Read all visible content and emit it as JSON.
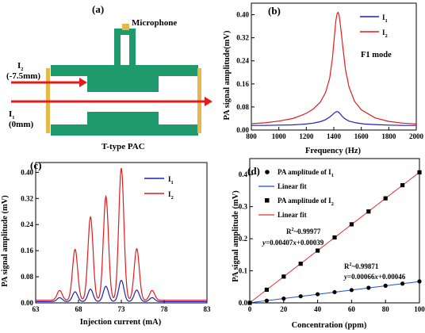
{
  "colors": {
    "i1": "#1f1fbe",
    "i2": "#e21c1c",
    "pac_green": "#1f9a6c",
    "window_gold": "#e6b84a",
    "beam_red": "#e21c1c",
    "mic_gold": "#e6b84a",
    "fit_blue": "#1a4fcf",
    "fit_red": "#e0302d"
  },
  "panels": {
    "a": {
      "panel_label": "(a)",
      "microphone_label": "Microphone",
      "beam_i2_name": "I",
      "beam_i2_sub": "2",
      "beam_i2_pos": "(-7.5mm)",
      "beam_i1_name": "I",
      "beam_i1_sub": "1",
      "beam_i1_pos": "(0mm)",
      "caption": "T-type PAC"
    },
    "b": {
      "panel_label": "(b)",
      "mode_label": "F1 mode",
      "legend_i1": "I",
      "legend_i1_sub": "1",
      "legend_i2": "I",
      "legend_i2_sub": "2"
    },
    "c": {
      "panel_label": "(c)",
      "legend_i1": "I",
      "legend_i1_sub": "1",
      "legend_i2": "I",
      "legend_i2_sub": "2"
    },
    "d": {
      "panel_label": "(d)",
      "legend_pa_i1": "PA amplitude of I",
      "legend_pa_i1_sub": "1",
      "legend_fit1": "Linear fit",
      "legend_pa_i2": "PA amplitude of I",
      "legend_pa_i2_sub": "2",
      "legend_fit2": "Linear fit",
      "r2_i2_prefix": "R",
      "r2_i2_sup": "2",
      "r2_i2_value": "~0.99977",
      "eq_i2_y": "y",
      "eq_i2_rest": "=0.00407",
      "eq_i2_x": "x",
      "eq_i2_tail": "+0.00039",
      "r2_i1_prefix": "R",
      "r2_i1_sup": "2",
      "r2_i1_value": "~0.99871",
      "eq_i1_y": "y",
      "eq_i1_rest": "=0.00066",
      "eq_i1_x": "x",
      "eq_i1_tail": "+0.00046"
    }
  },
  "chart_data": [
    {
      "id": "b",
      "type": "line",
      "title": "",
      "xlabel": "Frequency (Hz)",
      "ylabel": "PA signal amplitude(mV)",
      "xlim": [
        800,
        2000
      ],
      "ylim": [
        0,
        0.44
      ],
      "xticks": [
        "800",
        "1000",
        "1200",
        "1400",
        "1600",
        "1800",
        "2000"
      ],
      "yticks": [
        "0.00",
        "0.08",
        "0.16",
        "0.24",
        "0.32",
        "0.40"
      ],
      "series": [
        {
          "name": "I1",
          "color_key": "i1",
          "x": [
            800,
            900,
            1000,
            1100,
            1200,
            1250,
            1300,
            1340,
            1370,
            1390,
            1405,
            1420,
            1432,
            1445,
            1460,
            1480,
            1510,
            1560,
            1620,
            1700,
            1800,
            1900,
            2000
          ],
          "y": [
            0.016,
            0.016,
            0.017,
            0.018,
            0.021,
            0.024,
            0.029,
            0.036,
            0.045,
            0.053,
            0.06,
            0.064,
            0.063,
            0.057,
            0.048,
            0.039,
            0.031,
            0.025,
            0.021,
            0.019,
            0.017,
            0.016,
            0.016
          ]
        },
        {
          "name": "I2",
          "color_key": "i2",
          "x": [
            800,
            900,
            1000,
            1100,
            1150,
            1200,
            1250,
            1300,
            1340,
            1370,
            1390,
            1405,
            1415,
            1425,
            1432,
            1440,
            1450,
            1465,
            1485,
            1510,
            1550,
            1600,
            1700,
            1800,
            1900,
            2000
          ],
          "y": [
            0.022,
            0.025,
            0.031,
            0.04,
            0.048,
            0.058,
            0.073,
            0.096,
            0.13,
            0.18,
            0.25,
            0.33,
            0.38,
            0.405,
            0.408,
            0.395,
            0.355,
            0.29,
            0.21,
            0.15,
            0.1,
            0.07,
            0.042,
            0.03,
            0.024,
            0.021
          ]
        }
      ]
    },
    {
      "id": "c",
      "type": "line",
      "title": "",
      "xlabel": "Injection current (mA)",
      "ylabel": "PA signal amplitude (mV)",
      "xlim": [
        63,
        83
      ],
      "ylim": [
        0,
        0.43
      ],
      "xticks": [
        "63",
        "68",
        "73",
        "78",
        "83"
      ],
      "yticks": [
        "0.00",
        "0.08",
        "0.16",
        "0.24",
        "0.32",
        "0.40"
      ],
      "series": [
        {
          "name": "I1",
          "color_key": "i1",
          "fringes": {
            "centers": [
              65.8,
              67.6,
              69.4,
              71.2,
              73.0,
              74.8,
              76.6
            ],
            "amplitudes": [
              0.012,
              0.03,
              0.038,
              0.047,
              0.065,
              0.035,
              0.012
            ],
            "floor": 0.004
          }
        },
        {
          "name": "I2",
          "color_key": "i2",
          "fringes": {
            "centers": [
              65.8,
              67.6,
              69.4,
              71.2,
              73.0,
              74.8,
              76.6
            ],
            "amplitudes": [
              0.03,
              0.156,
              0.255,
              0.318,
              0.405,
              0.158,
              0.03
            ],
            "floor": 0.008
          }
        }
      ]
    },
    {
      "id": "d",
      "type": "scatter",
      "title": "",
      "xlabel": "Concentration (ppm)",
      "ylabel": "PA signal amplitude (mV)",
      "xlim": [
        0,
        100
      ],
      "ylim": [
        0,
        0.45
      ],
      "xticks": [
        "0",
        "20",
        "40",
        "60",
        "80",
        "100"
      ],
      "yticks": [
        "0.0",
        "0.1",
        "0.2",
        "0.3",
        "0.4"
      ],
      "series": [
        {
          "name": "PA amplitude of I1",
          "color_key": "i1",
          "marker": "circle",
          "x": [
            0,
            10,
            20,
            30,
            40,
            50,
            60,
            70,
            80,
            90,
            100
          ],
          "y": [
            0.0,
            0.007,
            0.0135,
            0.0205,
            0.027,
            0.0335,
            0.04,
            0.047,
            0.0535,
            0.06,
            0.067
          ],
          "fit": {
            "slope": 0.00066,
            "intercept": 0.00046,
            "color_key": "fit_blue"
          }
        },
        {
          "name": "PA amplitude of I2",
          "color_key": "i2",
          "marker": "square",
          "x": [
            0,
            10,
            20,
            30,
            40,
            50,
            60,
            70,
            80,
            90,
            100
          ],
          "y": [
            0.0,
            0.041,
            0.082,
            0.122,
            0.163,
            0.204,
            0.245,
            0.285,
            0.326,
            0.367,
            0.407
          ],
          "fit": {
            "slope": 0.00407,
            "intercept": 0.00039,
            "color_key": "fit_red"
          }
        }
      ]
    }
  ]
}
